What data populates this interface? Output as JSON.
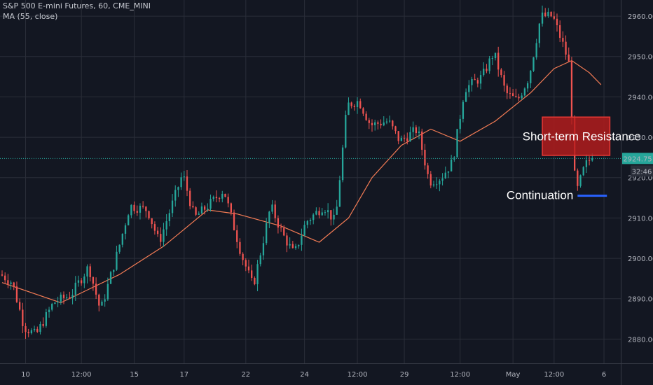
{
  "header": {
    "symbol_line": "S&P 500 E-mini Futures, 60, CME_MINI",
    "indicator_line": "MA (55, close)"
  },
  "colors": {
    "background": "#131722",
    "grid": "#2a2e39",
    "up": "#26a69a",
    "down": "#ef5350",
    "ma": "#f57c55",
    "price_line": "#26a69a",
    "zone_fill": "#b71c1c",
    "zone_border": "#e53935",
    "support_line": "#2962ff",
    "axis_text": "#b2b5be"
  },
  "chart_data": {
    "type": "candlestick",
    "title": "S&P 500 E-mini Futures, 60, CME_MINI",
    "indicator": "MA (55, close)",
    "ylim": [
      2874,
      2964
    ],
    "y_ticks": [
      2880,
      2890,
      2900,
      2910,
      2920,
      2930,
      2940,
      2950,
      2960
    ],
    "y_tick_labels": [
      "2880.00",
      "2890.00",
      "2900.00",
      "2910.00",
      "2920.00",
      "2930.00",
      "2940.00",
      "2950.00",
      "2960.00"
    ],
    "x_tick_labels": [
      "10",
      "12:00",
      "15",
      "17",
      "22",
      "24",
      "12:00",
      "29",
      "12:00",
      "May",
      "12:00",
      "6"
    ],
    "price_path": [
      {
        "x": 0,
        "y": 2896
      },
      {
        "x": 4,
        "y": 2894
      },
      {
        "x": 8,
        "y": 2883
      },
      {
        "x": 12,
        "y": 2881
      },
      {
        "x": 18,
        "y": 2889
      },
      {
        "x": 24,
        "y": 2891
      },
      {
        "x": 30,
        "y": 2898
      },
      {
        "x": 34,
        "y": 2887
      },
      {
        "x": 40,
        "y": 2902
      },
      {
        "x": 44,
        "y": 2913
      },
      {
        "x": 50,
        "y": 2912
      },
      {
        "x": 54,
        "y": 2904
      },
      {
        "x": 62,
        "y": 2921
      },
      {
        "x": 66,
        "y": 2910
      },
      {
        "x": 72,
        "y": 2914
      },
      {
        "x": 76,
        "y": 2917
      },
      {
        "x": 82,
        "y": 2901
      },
      {
        "x": 86,
        "y": 2893
      },
      {
        "x": 92,
        "y": 2913
      },
      {
        "x": 96,
        "y": 2906
      },
      {
        "x": 100,
        "y": 2901
      },
      {
        "x": 104,
        "y": 2909
      },
      {
        "x": 110,
        "y": 2913
      },
      {
        "x": 114,
        "y": 2909
      },
      {
        "x": 118,
        "y": 2938
      },
      {
        "x": 122,
        "y": 2939
      },
      {
        "x": 126,
        "y": 2933
      },
      {
        "x": 132,
        "y": 2934
      },
      {
        "x": 136,
        "y": 2929
      },
      {
        "x": 142,
        "y": 2932
      },
      {
        "x": 146,
        "y": 2919
      },
      {
        "x": 150,
        "y": 2920
      },
      {
        "x": 154,
        "y": 2924
      },
      {
        "x": 158,
        "y": 2942
      },
      {
        "x": 164,
        "y": 2945
      },
      {
        "x": 168,
        "y": 2951
      },
      {
        "x": 172,
        "y": 2941
      },
      {
        "x": 176,
        "y": 2939
      },
      {
        "x": 180,
        "y": 2945
      },
      {
        "x": 184,
        "y": 2960
      },
      {
        "x": 188,
        "y": 2960
      },
      {
        "x": 192,
        "y": 2952
      },
      {
        "x": 194,
        "y": 2947
      },
      {
        "x": 195,
        "y": 2925
      },
      {
        "x": 196,
        "y": 2916
      },
      {
        "x": 199,
        "y": 2923
      },
      {
        "x": 201,
        "y": 2924.75
      }
    ],
    "ma_path": [
      {
        "x": 0,
        "y": 2894
      },
      {
        "x": 20,
        "y": 2889
      },
      {
        "x": 40,
        "y": 2896
      },
      {
        "x": 55,
        "y": 2903
      },
      {
        "x": 70,
        "y": 2912
      },
      {
        "x": 80,
        "y": 2911
      },
      {
        "x": 95,
        "y": 2908
      },
      {
        "x": 108,
        "y": 2904
      },
      {
        "x": 118,
        "y": 2910
      },
      {
        "x": 126,
        "y": 2920
      },
      {
        "x": 136,
        "y": 2928
      },
      {
        "x": 146,
        "y": 2932
      },
      {
        "x": 156,
        "y": 2929
      },
      {
        "x": 168,
        "y": 2934
      },
      {
        "x": 180,
        "y": 2941
      },
      {
        "x": 188,
        "y": 2947
      },
      {
        "x": 194,
        "y": 2949
      },
      {
        "x": 200,
        "y": 2946
      },
      {
        "x": 204,
        "y": 2943
      }
    ],
    "last_price": 2924.75,
    "last_price_label": "2924.75",
    "countdown": "32:46",
    "annotations": [
      {
        "text": "Short-term Resistance",
        "type": "zone",
        "y_range": [
          2925.5,
          2935
        ]
      },
      {
        "text": "Continuation",
        "type": "level",
        "y": 2915.5
      }
    ]
  }
}
